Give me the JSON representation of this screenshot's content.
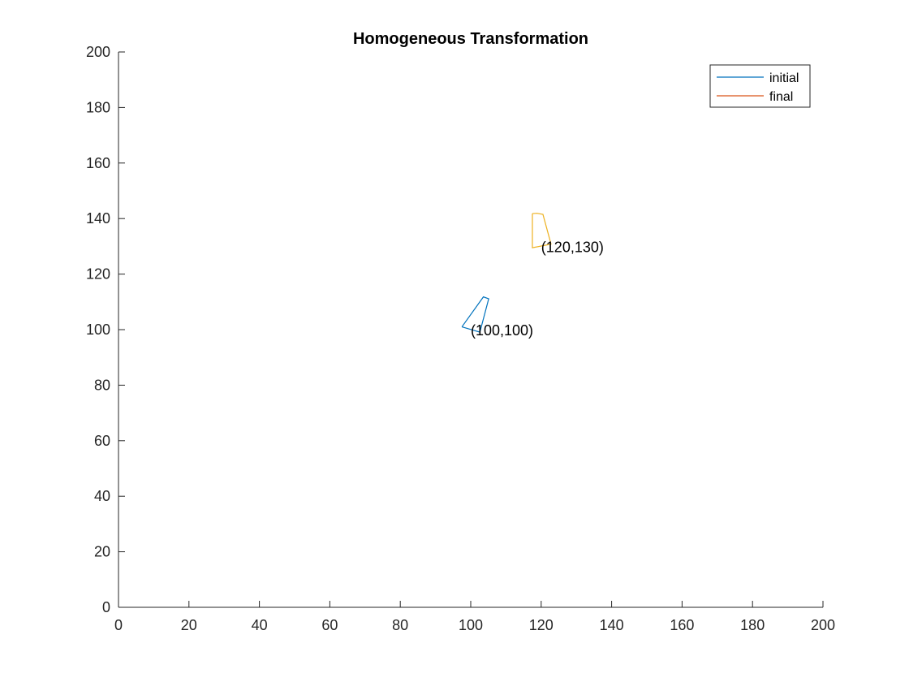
{
  "chart_data": {
    "type": "line",
    "title": "Homogeneous Transformation",
    "xlabel": "",
    "ylabel": "",
    "xlim": [
      0,
      200
    ],
    "ylim": [
      0,
      200
    ],
    "xticks": [
      0,
      20,
      40,
      60,
      80,
      100,
      120,
      140,
      160,
      180,
      200
    ],
    "yticks": [
      0,
      20,
      40,
      60,
      80,
      100,
      120,
      140,
      160,
      180,
      200
    ],
    "xtick_labels": [
      "0",
      "20",
      "40",
      "60",
      "80",
      "100",
      "120",
      "140",
      "160",
      "180",
      "200"
    ],
    "ytick_labels": [
      "0",
      "20",
      "40",
      "60",
      "80",
      "100",
      "120",
      "140",
      "160",
      "180",
      "200"
    ],
    "grid": false,
    "legend_position": "top-right",
    "series": [
      {
        "name": "initial",
        "color": "#0072BD",
        "x": [
          97.5,
          103.6,
          105.1,
          102.6,
          97.5
        ],
        "y": [
          101.0,
          111.8,
          111.1,
          99.1,
          101.0
        ]
      },
      {
        "name": "final",
        "color": "#D95319",
        "x": [],
        "y": []
      },
      {
        "color": "#EDB120",
        "x": [
          117.5,
          118.8,
          120.5,
          122.8,
          117.5,
          117.5
        ],
        "y": [
          141.8,
          141.9,
          141.5,
          130.8,
          129.5,
          141.8
        ]
      }
    ],
    "annotations": [
      {
        "text": "(100,100)",
        "x": 100,
        "y": 100
      },
      {
        "text": "(120,130)",
        "x": 120,
        "y": 130
      }
    ]
  }
}
